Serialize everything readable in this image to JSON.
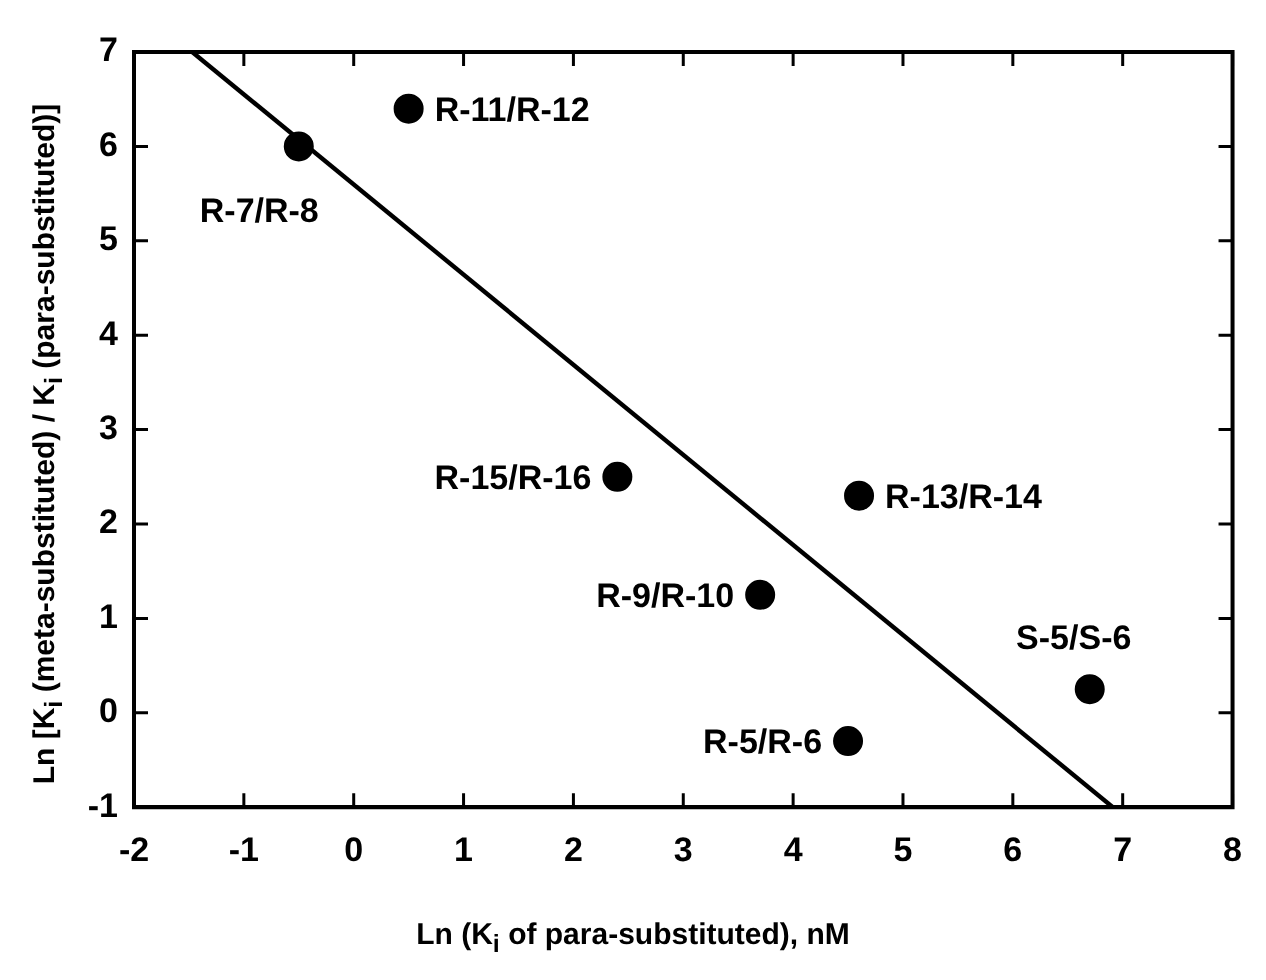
{
  "chart_data": {
    "type": "scatter",
    "xlabel": "Ln (K$_{i}$ of para-substituted), nM",
    "ylabel": "Ln [K$_{i}$ (meta-substituted) / K$_{i}$ (para-substituted)]",
    "xlim": [
      -2,
      8
    ],
    "xticks": [
      -2,
      -1,
      0,
      1,
      2,
      3,
      4,
      5,
      6,
      7,
      8
    ],
    "ylim": [
      -1,
      7
    ],
    "yticks": [
      -1,
      0,
      1,
      2,
      3,
      4,
      5,
      6,
      7
    ],
    "grid": false,
    "legend": false,
    "marker": "circle",
    "series": [
      {
        "color": "#000000",
        "x": [
          -0.5,
          0.5,
          2.4,
          3.7,
          4.6,
          4.5,
          6.7
        ],
        "values": [
          6.0,
          6.4,
          2.5,
          1.25,
          2.3,
          -0.3,
          0.25
        ]
      },
      {
        "type": "line",
        "color": "#000000",
        "marker": "none",
        "x": [
          -1.47,
          6.91
        ],
        "values": [
          7,
          -1
        ]
      }
    ],
    "annotations": [
      {
        "text": "R-7/R-8",
        "x": -0.5,
        "y": 6.0
      },
      {
        "text": "R-11/R-12",
        "x": 0.5,
        "y": 6.4
      },
      {
        "text": "R-15/R-16",
        "x": 2.4,
        "y": 2.5
      },
      {
        "text": "R-9/R-10",
        "x": 3.7,
        "y": 1.25
      },
      {
        "text": "R-13/R-14",
        "x": 4.6,
        "y": 2.3
      },
      {
        "text": "R-5/R-6",
        "x": 4.5,
        "y": -0.3
      },
      {
        "text": "S-5/S-6",
        "x": 6.7,
        "y": 0.25
      }
    ]
  }
}
